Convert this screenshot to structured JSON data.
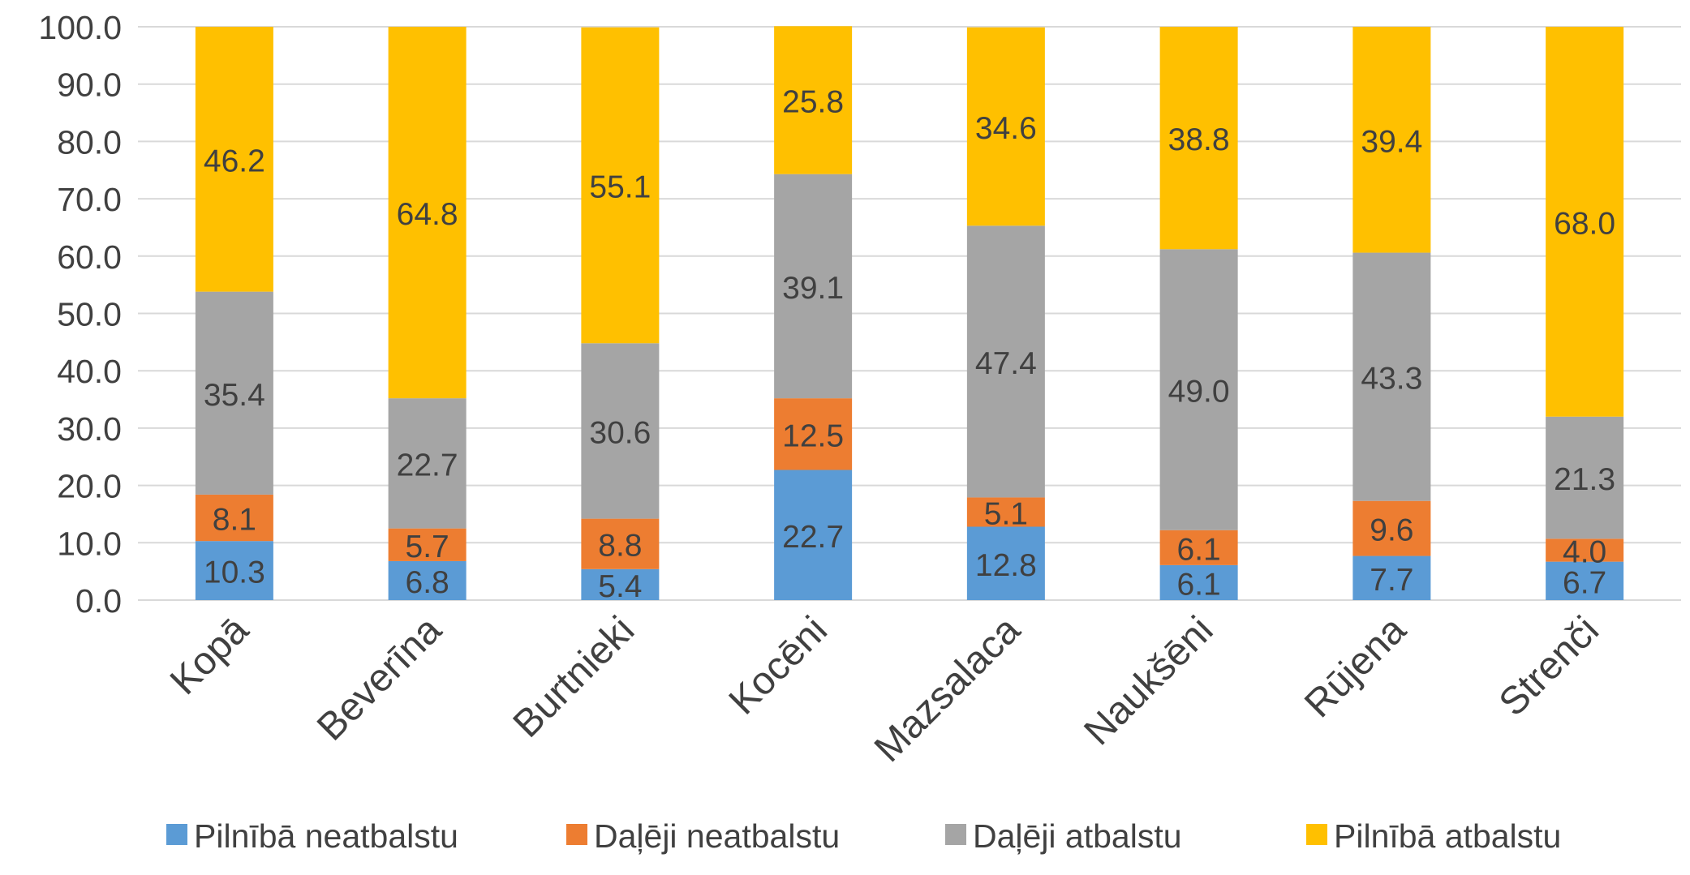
{
  "chart_data": {
    "type": "bar",
    "stacked": true,
    "categories": [
      "Kopā",
      "Beverīna",
      "Burtnieki",
      "Kocēni",
      "Mazsalaca",
      "Naukšēni",
      "Rūjena",
      "Strenči"
    ],
    "series": [
      {
        "name": "Pilnībā neatbalstu",
        "color": "#5B9BD5",
        "values": [
          10.3,
          6.8,
          5.4,
          22.7,
          12.8,
          6.1,
          7.7,
          6.7
        ]
      },
      {
        "name": "Daļēji neatbalstu",
        "color": "#ED7D31",
        "values": [
          8.1,
          5.7,
          8.8,
          12.5,
          5.1,
          6.1,
          9.6,
          4.0
        ]
      },
      {
        "name": "Daļēji atbalstu",
        "color": "#A5A5A5",
        "values": [
          35.4,
          22.7,
          30.6,
          39.1,
          47.4,
          49.0,
          43.3,
          21.3
        ]
      },
      {
        "name": "Pilnībā atbalstu",
        "color": "#FFC000",
        "values": [
          46.2,
          64.8,
          55.1,
          25.8,
          34.6,
          38.8,
          39.4,
          68.0
        ]
      }
    ],
    "y_ticks": [
      "0.0",
      "10.0",
      "20.0",
      "30.0",
      "40.0",
      "50.0",
      "60.0",
      "70.0",
      "80.0",
      "90.0",
      "100.0"
    ],
    "ylim": [
      0,
      100
    ],
    "grid": true,
    "legend_position": "bottom",
    "label_color": "#404040",
    "gridline_color": "#D9D9D9"
  }
}
